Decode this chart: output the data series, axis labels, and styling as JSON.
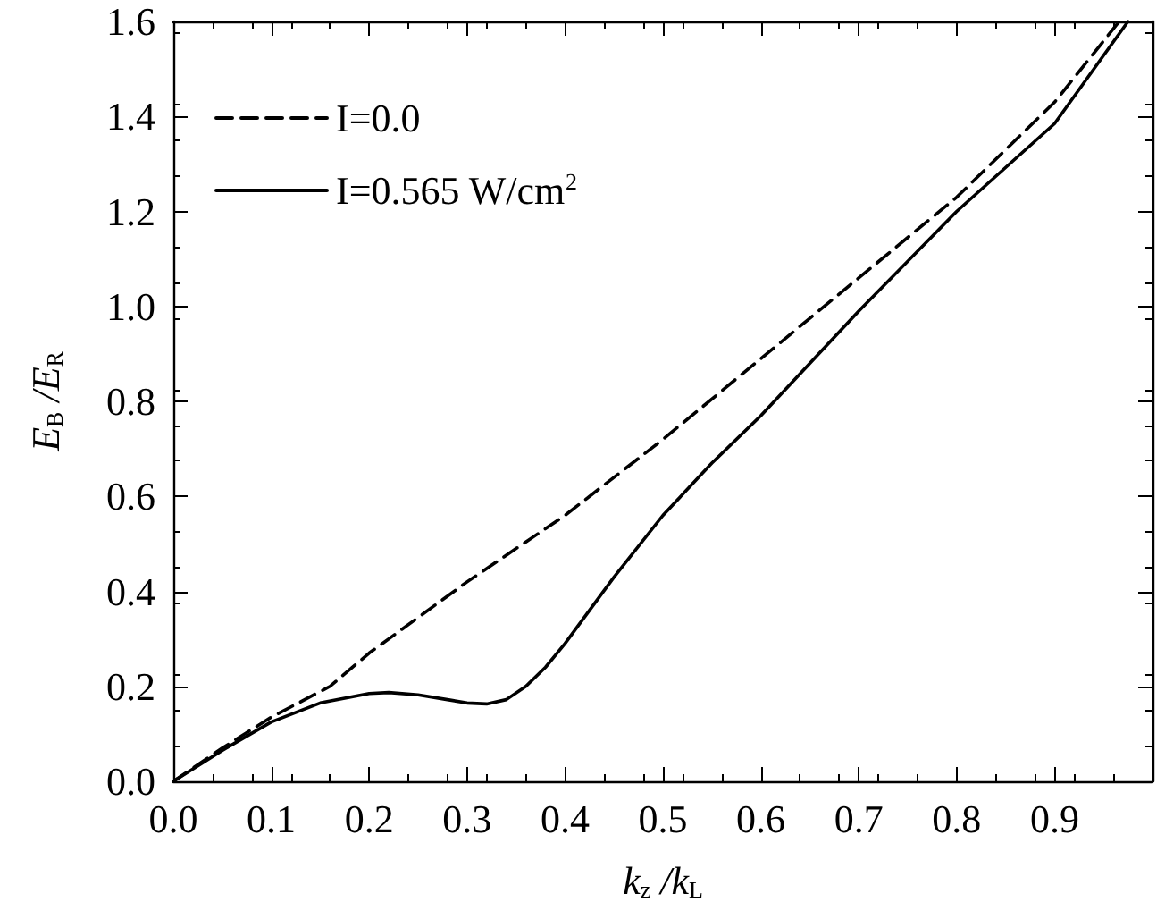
{
  "chart_data": {
    "type": "line",
    "xlabel": "k$_{z}$ /k$_{L}$",
    "ylabel": "E$_{B}$ /E$_{R}$",
    "xlim": [
      0,
      1
    ],
    "xticks": [
      {
        "value": 0,
        "label": "0.0"
      },
      {
        "value": 0.1,
        "label": "0.1"
      },
      {
        "value": 0.2,
        "label": "0.2"
      },
      {
        "value": 0.3,
        "label": "0.3"
      },
      {
        "value": 0.4,
        "label": "0.4"
      },
      {
        "value": 0.5,
        "label": "0.5"
      },
      {
        "value": 0.6,
        "label": "0.6"
      },
      {
        "value": 0.7,
        "label": "0.7"
      },
      {
        "value": 0.8,
        "label": "0.8"
      },
      {
        "value": 0.9,
        "label": "0.9"
      }
    ],
    "ylim": [
      0,
      1.6
    ],
    "yticks": [
      {
        "value": 0,
        "label": "0.0"
      },
      {
        "value": 0.2,
        "label": "0.2"
      },
      {
        "value": 0.4,
        "label": "0.4"
      },
      {
        "value": 0.6,
        "label": "0.6"
      },
      {
        "value": 0.8,
        "label": "0.8"
      },
      {
        "value": 1,
        "label": "1.0"
      },
      {
        "value": 1.2,
        "label": "1.2"
      },
      {
        "value": 1.4,
        "label": "1.4"
      },
      {
        "value": 1.6,
        "label": "1.6"
      }
    ],
    "legend": "top left",
    "grid": false,
    "marker": "none",
    "series": [
      {
        "name": "I=0.0",
        "color": "#000000",
        "line_style": "dashed",
        "x": [
          0,
          0.05,
          0.1,
          0.16,
          0.2,
          0.3,
          0.4,
          0.5,
          0.6,
          0.7,
          0.8,
          0.9,
          0.966
        ],
        "values": [
          0,
          0.07,
          0.135,
          0.2,
          0.27,
          0.42,
          0.56,
          0.72,
          0.89,
          1.06,
          1.23,
          1.43,
          1.6
        ]
      },
      {
        "name": "I=0.565 W/cm$^{2}$",
        "color": "#000000",
        "line_style": "solid",
        "x": [
          0,
          0.05,
          0.1,
          0.15,
          0.2,
          0.22,
          0.25,
          0.28,
          0.3,
          0.32,
          0.34,
          0.36,
          0.38,
          0.4,
          0.45,
          0.5,
          0.55,
          0.6,
          0.7,
          0.8,
          0.9,
          0.975
        ],
        "values": [
          0,
          0.065,
          0.125,
          0.165,
          0.185,
          0.187,
          0.182,
          0.172,
          0.165,
          0.163,
          0.172,
          0.2,
          0.24,
          0.29,
          0.43,
          0.56,
          0.67,
          0.77,
          0.99,
          1.2,
          1.385,
          1.6
        ]
      }
    ]
  }
}
